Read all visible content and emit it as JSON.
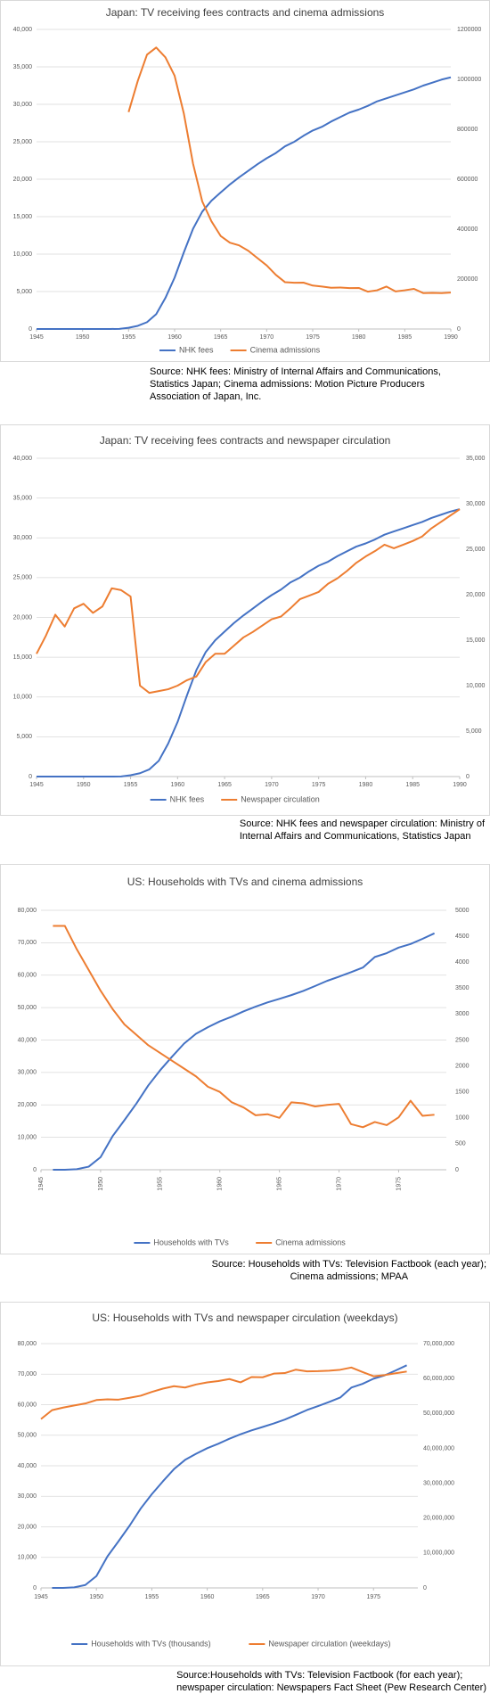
{
  "chart_data": [
    {
      "type": "line",
      "title": "Japan: TV receiving fees contracts and cinema admissions",
      "x": [
        1945,
        1946,
        1947,
        1948,
        1949,
        1950,
        1951,
        1952,
        1953,
        1954,
        1955,
        1956,
        1957,
        1958,
        1959,
        1960,
        1961,
        1962,
        1963,
        1964,
        1965,
        1966,
        1967,
        1968,
        1969,
        1970,
        1971,
        1972,
        1973,
        1974,
        1975,
        1976,
        1977,
        1978,
        1979,
        1980,
        1981,
        1982,
        1983,
        1984,
        1985,
        1986,
        1987,
        1988,
        1989,
        1990
      ],
      "xlim": [
        1945,
        1990
      ],
      "xticks": [
        1945,
        1950,
        1955,
        1960,
        1965,
        1970,
        1975,
        1980,
        1985,
        1990
      ],
      "ylim": [
        0,
        40000
      ],
      "yticks": [
        0,
        {
          "value": 5000,
          "label": "5,000"
        },
        {
          "value": 10000,
          "label": "10,000"
        },
        {
          "value": 15000,
          "label": "15,000"
        },
        {
          "value": 20000,
          "label": "20,000"
        },
        {
          "value": 25000,
          "label": "25,000"
        },
        {
          "value": 30000,
          "label": "30,000"
        },
        {
          "value": 35000,
          "label": "35,000"
        },
        {
          "value": 40000,
          "label": "40,000"
        }
      ],
      "y2lim": [
        0,
        1200000
      ],
      "y2ticks": [
        0,
        200000,
        400000,
        600000,
        800000,
        1000000,
        1200000
      ],
      "grid": true,
      "legend": "bottom",
      "series": [
        {
          "name": "NHK fees",
          "color": "#4472c4",
          "values": [
            0,
            0,
            0,
            0,
            0,
            0,
            0,
            0,
            1,
            17,
            166,
            420,
            908,
            1982,
            4149,
            6860,
            10222,
            13379,
            15663,
            17132,
            18224,
            19296,
            20250,
            21119,
            22000,
            22800,
            23500,
            24400,
            25000,
            25800,
            26500,
            27000,
            27700,
            28300,
            28900,
            29300,
            29800,
            30400,
            30800,
            31200,
            31600,
            32000,
            32500,
            32900,
            33300,
            33600
          ]
        },
        {
          "name": "Cinema admissions",
          "color": "#ed7d31",
          "axis": "y2",
          "values": [
            null,
            null,
            null,
            null,
            null,
            null,
            null,
            null,
            null,
            null,
            868912,
            993875,
            1098882,
            1127452,
            1088111,
            1014364,
            863430,
            662279,
            511121,
            431454,
            372676,
            345811,
            335067,
            313398,
            283980,
            254799,
            216754,
            187384,
            185324,
            185738,
            174020,
            170019,
            165150,
            166042,
            163990,
            164422,
            149450,
            155130,
            170043,
            150527,
            155130,
            160758,
            143935,
            144825,
            143573,
            146000
          ]
        }
      ],
      "source": [
        "Source: NHK fees: Ministry of Internal Affairs and Communications,",
        "Statistics Japan;  Cinema admissions: Motion Picture Producers",
        "Association of Japan, Inc."
      ]
    },
    {
      "type": "line",
      "title": "Japan: TV receiving fees contracts and newspaper circulation",
      "x": [
        1945,
        1946,
        1947,
        1948,
        1949,
        1950,
        1951,
        1952,
        1953,
        1954,
        1955,
        1956,
        1957,
        1958,
        1959,
        1960,
        1961,
        1962,
        1963,
        1964,
        1965,
        1966,
        1967,
        1968,
        1969,
        1970,
        1971,
        1972,
        1973,
        1974,
        1975,
        1976,
        1977,
        1978,
        1979,
        1980,
        1981,
        1982,
        1983,
        1984,
        1985,
        1986,
        1987,
        1988,
        1989,
        1990
      ],
      "xlim": [
        1945,
        1990
      ],
      "xticks": [
        1945,
        1950,
        1955,
        1960,
        1965,
        1970,
        1975,
        1980,
        1985,
        1990
      ],
      "ylim": [
        0,
        40000
      ],
      "yticks": [
        0,
        {
          "value": 5000,
          "label": "5,000"
        },
        {
          "value": 10000,
          "label": "10,000"
        },
        {
          "value": 15000,
          "label": "15,000"
        },
        {
          "value": 20000,
          "label": "20,000"
        },
        {
          "value": 25000,
          "label": "25,000"
        },
        {
          "value": 30000,
          "label": "30,000"
        },
        {
          "value": 35000,
          "label": "35,000"
        },
        {
          "value": 40000,
          "label": "40,000"
        }
      ],
      "y2lim": [
        0,
        35000
      ],
      "y2ticks": [
        0,
        {
          "value": 5000,
          "label": "5,000"
        },
        {
          "value": 10000,
          "label": "10,000"
        },
        {
          "value": 15000,
          "label": "15,000"
        },
        {
          "value": 20000,
          "label": "20,000"
        },
        {
          "value": 25000,
          "label": "25,000"
        },
        {
          "value": 30000,
          "label": "30,000"
        },
        {
          "value": 35000,
          "label": "35,000"
        }
      ],
      "grid": true,
      "legend": "bottom",
      "series": [
        {
          "name": "NHK fees",
          "color": "#4472c4",
          "values": [
            0,
            0,
            0,
            0,
            0,
            0,
            0,
            0,
            1,
            17,
            166,
            420,
            908,
            1982,
            4149,
            6860,
            10222,
            13379,
            15663,
            17132,
            18224,
            19296,
            20250,
            21119,
            22000,
            22800,
            23500,
            24400,
            25000,
            25800,
            26500,
            27000,
            27700,
            28300,
            28900,
            29300,
            29800,
            30400,
            30800,
            31200,
            31600,
            32000,
            32500,
            32900,
            33300,
            33600
          ]
        },
        {
          "name": "Newspaper circulation",
          "color": "#ed7d31",
          "axis": "y2",
          "values": [
            13500,
            15500,
            17800,
            16500,
            18500,
            19000,
            18000,
            18700,
            20700,
            20500,
            19800,
            10000,
            9200,
            9400,
            9600,
            10000,
            10600,
            11000,
            12600,
            13500,
            13500,
            14400,
            15300,
            15900,
            16600,
            17300,
            17600,
            18500,
            19500,
            19900,
            20300,
            21200,
            21800,
            22600,
            23500,
            24200,
            24800,
            25500,
            25100,
            25500,
            25900,
            26400,
            27300,
            28000,
            28700,
            29400
          ]
        }
      ],
      "source": [
        "Source: NHK fees and newspaper circulation: Ministry of",
        "Internal Affairs and Communications, Statistics Japan"
      ]
    },
    {
      "type": "line",
      "title": "US: Households with TVs and cinema admissions",
      "x": [
        1946,
        1947,
        1948,
        1949,
        1950,
        1951,
        1952,
        1953,
        1954,
        1955,
        1956,
        1957,
        1958,
        1959,
        1960,
        1961,
        1962,
        1963,
        1964,
        1965,
        1966,
        1967,
        1968,
        1969,
        1970,
        1971,
        1972,
        1973,
        1974,
        1975,
        1976,
        1977,
        1978
      ],
      "xlim": [
        1945,
        1979
      ],
      "xticks": [
        1945,
        1950,
        1955,
        1960,
        1965,
        1970,
        1975
      ],
      "ylim": [
        0,
        80000
      ],
      "yticks": [
        0,
        {
          "value": 10000,
          "label": "10,000"
        },
        {
          "value": 20000,
          "label": "20,000"
        },
        {
          "value": 30000,
          "label": "30,000"
        },
        {
          "value": 40000,
          "label": "40,000"
        },
        {
          "value": 50000,
          "label": "50,000"
        },
        {
          "value": 60000,
          "label": "60,000"
        },
        {
          "value": 70000,
          "label": "70,000"
        },
        {
          "value": 80000,
          "label": "80,000"
        }
      ],
      "y2lim": [
        0,
        5000
      ],
      "y2ticks": [
        0,
        500,
        1000,
        1500,
        2000,
        2500,
        3000,
        3500,
        4000,
        4500,
        5000
      ],
      "grid": true,
      "legend": "bottom",
      "xlabel_rotation": -90,
      "series": [
        {
          "name": "Households with TVs",
          "color": "#4472c4",
          "values": [
            8,
            14,
            172,
            940,
            3875,
            10320,
            15300,
            20400,
            26000,
            30700,
            34900,
            38900,
            41920,
            43950,
            45750,
            47200,
            48855,
            50300,
            51600,
            52700,
            53850,
            55130,
            56670,
            58250,
            59550,
            60900,
            62350,
            65600,
            66800,
            68500,
            69600,
            71200,
            72900
          ]
        },
        {
          "name": "Cinema admissions",
          "color": "#ed7d31",
          "axis": "y2",
          "values": [
            4700,
            4700,
            4250,
            3850,
            3450,
            3100,
            2800,
            2600,
            2400,
            2250,
            2100,
            1950,
            1800,
            1600,
            1500,
            1300,
            1200,
            1050,
            1070,
            1000,
            1300,
            1280,
            1220,
            1250,
            1270,
            880,
            820,
            920,
            860,
            1010,
            1330,
            1040,
            1060
          ]
        }
      ],
      "source": [
        "Source: Households with TVs: Television Factbook (each year);",
        "Cinema admissions; MPAA"
      ]
    },
    {
      "type": "line",
      "title": "US: Households with TVs and newspaper circulation (weekdays)",
      "x": [
        1945,
        1946,
        1947,
        1948,
        1949,
        1950,
        1951,
        1952,
        1953,
        1954,
        1955,
        1956,
        1957,
        1958,
        1959,
        1960,
        1961,
        1962,
        1963,
        1964,
        1965,
        1966,
        1967,
        1968,
        1969,
        1970,
        1971,
        1972,
        1973,
        1974,
        1975,
        1976,
        1977,
        1978
      ],
      "xlim": [
        1945,
        1979
      ],
      "xticks": [
        1945,
        1950,
        1955,
        1960,
        1965,
        1970,
        1975
      ],
      "ylim": [
        0,
        80000
      ],
      "yticks": [
        0,
        {
          "value": 10000,
          "label": "10,000"
        },
        {
          "value": 20000,
          "label": "20,000"
        },
        {
          "value": 30000,
          "label": "30,000"
        },
        {
          "value": 40000,
          "label": "40,000"
        },
        {
          "value": 50000,
          "label": "50,000"
        },
        {
          "value": 60000,
          "label": "60,000"
        },
        {
          "value": 70000,
          "label": "70,000"
        },
        {
          "value": 80000,
          "label": "80,000"
        }
      ],
      "y2lim": [
        0,
        70000000
      ],
      "y2ticks": [
        0,
        {
          "value": 10000000,
          "label": "10,000,000"
        },
        {
          "value": 20000000,
          "label": "20,000,000"
        },
        {
          "value": 30000000,
          "label": "30,000,000"
        },
        {
          "value": 40000000,
          "label": "40,000,000"
        },
        {
          "value": 50000000,
          "label": "50,000,000"
        },
        {
          "value": 60000000,
          "label": "60,000,000"
        },
        {
          "value": 70000000,
          "label": "70,000,000"
        }
      ],
      "grid": true,
      "legend": "bottom",
      "series": [
        {
          "name": "Households with TVs (thousands)",
          "color": "#4472c4",
          "values": [
            null,
            8,
            14,
            172,
            940,
            3875,
            10320,
            15300,
            20400,
            26000,
            30700,
            34900,
            38900,
            41920,
            43950,
            45750,
            47200,
            48855,
            50300,
            51600,
            52700,
            53850,
            55130,
            56670,
            58250,
            59550,
            60900,
            62350,
            65600,
            66800,
            68500,
            69600,
            71200,
            72900
          ]
        },
        {
          "name": "Newspaper circulation (weekdays)",
          "color": "#ed7d31",
          "axis": "y2",
          "values": [
            48384000,
            50928000,
            51673000,
            52285000,
            52846000,
            53829000,
            54018000,
            53951000,
            54472000,
            55072000,
            56147000,
            57102000,
            57805000,
            57418000,
            58300000,
            58882000,
            59261000,
            59849000,
            58905000,
            60412000,
            60358000,
            61397000,
            61561000,
            62535000,
            62060000,
            62108000,
            62231000,
            62510000,
            63147000,
            61877000,
            60655000,
            60977000,
            61495000,
            62000000
          ]
        }
      ],
      "source": [
        "Source:Households with TVs: Television Factbook (for each year);",
        "newspaper circulation: Newspapers Fact Sheet (Pew Research Center)"
      ]
    }
  ]
}
